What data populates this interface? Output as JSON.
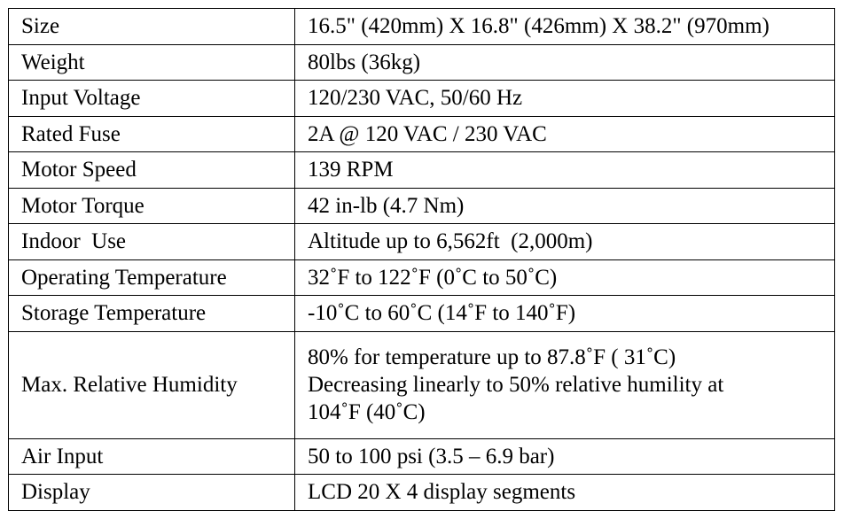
{
  "rows": [
    {
      "label": "Size",
      "value": "16.5\" (420mm) X 16.8\" (426mm) X 38.2\" (970mm)"
    },
    {
      "label": "Weight",
      "value": "80lbs (36kg)"
    },
    {
      "label": "Input Voltage",
      "value": "120/230 VAC, 50/60 Hz"
    },
    {
      "label": "Rated Fuse",
      "value": "2A @ 120 VAC / 230 VAC"
    },
    {
      "label": "Motor Speed",
      "value": "139 RPM"
    },
    {
      "label": "Motor Torque",
      "value": "42 in-lb (4.7 Nm)"
    },
    {
      "label": "Indoor  Use",
      "value": "Altitude up to 6,562ft  (2,000m)"
    },
    {
      "label": "Operating Temperature",
      "value": "32˚F to 122˚F (0˚C to 50˚C)"
    },
    {
      "label": "Storage Temperature",
      "value": "-10˚C to 60˚C (14˚F to 140˚F)"
    },
    {
      "label": "Max. Relative Humidity",
      "value_lines": [
        "80% for temperature up to 87.8˚F ( 31˚C)",
        "Decreasing linearly to 50% relative humility at",
        "104˚F (40˚C)"
      ]
    },
    {
      "label": "Air Input",
      "value": "50 to 100 psi (3.5 – 6.9 bar)"
    },
    {
      "label": "Display",
      "value": "LCD 20 X 4 display segments"
    }
  ]
}
